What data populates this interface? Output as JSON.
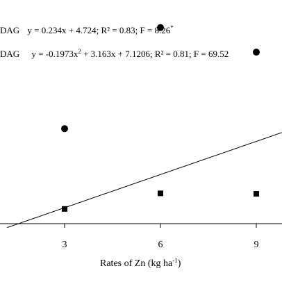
{
  "chart_data": {
    "type": "scatter",
    "xlabel": {
      "text": "Rates of Zn (kg ha",
      "sup": "-1",
      "tail": ")"
    },
    "ylabel": "",
    "x_ticks": [
      3,
      6,
      9
    ],
    "xlim": [
      1.2,
      9.8
    ],
    "ylim": [
      4.2,
      9.6
    ],
    "grid": false,
    "series": [
      {
        "legend_name": "DAG",
        "equation": "y = 0.234x + 4.724; R² = 0.83; F = 8.26",
        "equation_sup": "*",
        "marker": "square",
        "fit_style": "solid",
        "fit": {
          "kind": "linear",
          "a": 0.234,
          "b": 4.724
        },
        "points": [
          {
            "x": 3,
            "y": 5.4
          },
          {
            "x": 6,
            "y": 5.73
          },
          {
            "x": 9,
            "y": 5.72
          }
        ]
      },
      {
        "legend_name": "DAG",
        "equation": "y = -0.1973x",
        "equation_sup": "2",
        "equation_tail": " + 3.163x + 7.1206; R² = 0.81; F = 69.52",
        "marker": "circle",
        "fit_style": "dashed",
        "fit": {
          "kind": "quadratic",
          "a": -0.1973,
          "b": 3.163,
          "c": 7.1206
        },
        "points": [
          {
            "x": 3,
            "y": 7.1
          },
          {
            "x": 6,
            "y": 9.24
          },
          {
            "x": 9,
            "y": 8.72
          }
        ]
      }
    ]
  }
}
